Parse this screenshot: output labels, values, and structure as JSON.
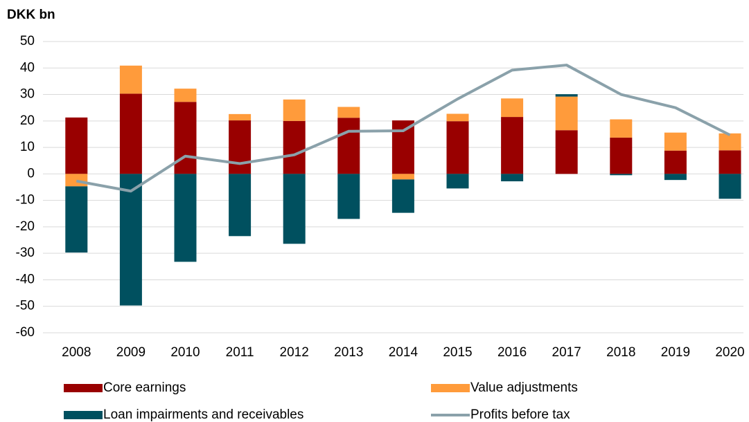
{
  "chart_data": {
    "type": "stacked-bar-line",
    "title": "DKK bn",
    "categories": [
      "2008",
      "2009",
      "2010",
      "2011",
      "2012",
      "2013",
      "2014",
      "2015",
      "2016",
      "2017",
      "2018",
      "2019",
      "2020"
    ],
    "series": [
      {
        "name": "Core earnings",
        "color": "#990000",
        "type": "bar",
        "values": [
          21.3,
          30.3,
          27.2,
          20.2,
          20.0,
          21.2,
          20.2,
          19.9,
          21.5,
          16.5,
          13.7,
          8.8,
          8.9
        ]
      },
      {
        "name": "Value adjustments",
        "color": "#ff9b3b",
        "type": "bar",
        "values": [
          -4.7,
          10.6,
          5.0,
          2.4,
          8.1,
          4.1,
          -2.1,
          2.8,
          7.0,
          12.7,
          6.9,
          6.8,
          6.4
        ]
      },
      {
        "name": "Loan impairments and receivables",
        "color": "#00505f",
        "type": "bar",
        "values": [
          -25.0,
          -49.7,
          -33.2,
          -23.5,
          -26.4,
          -17.0,
          -12.6,
          -5.5,
          -2.8,
          0.9,
          -0.5,
          -2.3,
          -9.4
        ]
      },
      {
        "name": "Profits before tax",
        "color": "#8aa1aa",
        "type": "line",
        "values": [
          -2.7,
          -6.5,
          6.7,
          3.9,
          7.2,
          16.1,
          16.3,
          28.3,
          39.2,
          41.1,
          30.0,
          25.0,
          14.7
        ]
      }
    ],
    "ylim": [
      -60,
      50
    ],
    "yticks": [
      -60,
      -50,
      -40,
      -30,
      -20,
      -10,
      0,
      10,
      20,
      30,
      40,
      50
    ],
    "grid": true
  }
}
